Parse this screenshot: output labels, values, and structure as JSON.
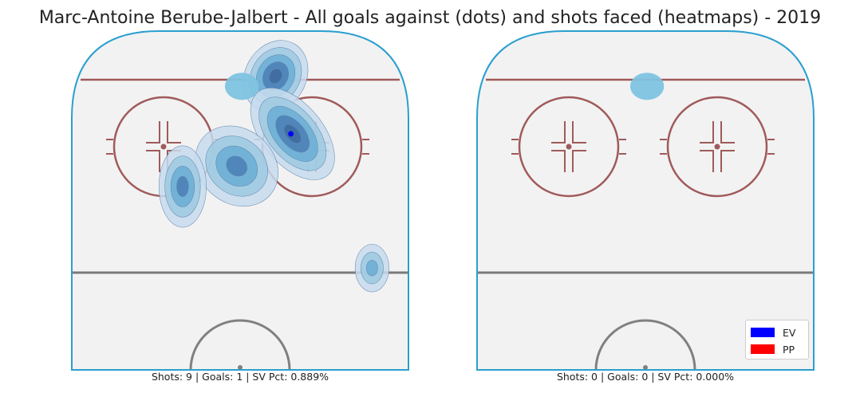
{
  "title": "Marc-Antoine Berube-Jalbert - All goals against (dots) and shots faced (heatmaps) - 2019",
  "chart_data": [
    {
      "type": "heatmap",
      "panel": "left",
      "caption": "Shots: 9 | Goals: 1 | SV Pct: 0.889%",
      "summary": {
        "shots": 9,
        "goals": 1,
        "sv_pct": "0.889%"
      },
      "shot_density_clusters": [
        {
          "x": 0.605,
          "y": 0.135,
          "rx": 0.09,
          "ry": 0.11,
          "angle": 30,
          "levels": 5
        },
        {
          "x": 0.655,
          "y": 0.305,
          "rx": 0.09,
          "ry": 0.16,
          "angle": -40,
          "levels": 5
        },
        {
          "x": 0.49,
          "y": 0.4,
          "rx": 0.11,
          "ry": 0.13,
          "angle": -50,
          "levels": 4
        },
        {
          "x": 0.33,
          "y": 0.46,
          "rx": 0.07,
          "ry": 0.12,
          "angle": 0,
          "levels": 4
        },
        {
          "x": 0.89,
          "y": 0.7,
          "rx": 0.05,
          "ry": 0.07,
          "angle": 0,
          "levels": 3
        },
        {
          "x": 0.505,
          "y": 0.165,
          "rx": 0.05,
          "ry": 0.04,
          "angle": 0,
          "levels": 1
        }
      ],
      "goals_against": [
        {
          "x": 0.65,
          "y": 0.305,
          "strength": "EV"
        }
      ]
    },
    {
      "type": "heatmap",
      "panel": "right",
      "caption": "Shots: 0 | Goals: 0 | SV Pct: 0.000%",
      "summary": {
        "shots": 0,
        "goals": 0,
        "sv_pct": "0.000%"
      },
      "shot_density_clusters": [
        {
          "x": 0.505,
          "y": 0.165,
          "rx": 0.05,
          "ry": 0.04,
          "angle": 0,
          "levels": 1
        }
      ],
      "goals_against": []
    }
  ],
  "legend": [
    {
      "label": "EV",
      "color": "#0000ff"
    },
    {
      "label": "PP",
      "color": "#ff0000"
    }
  ],
  "colors": {
    "ice": "#f2f2f2",
    "boards": "#2b9fd0",
    "blue_line_red": "#a05a5a",
    "circle": "#a05a5a",
    "center_line": "#7a7a7a",
    "crease": "#808080",
    "heat_levels": [
      "#c7dcef",
      "#9ecae1",
      "#6baed6",
      "#4a7fb5",
      "#3e6a9e"
    ],
    "heat_light": "#7ec3e0"
  }
}
